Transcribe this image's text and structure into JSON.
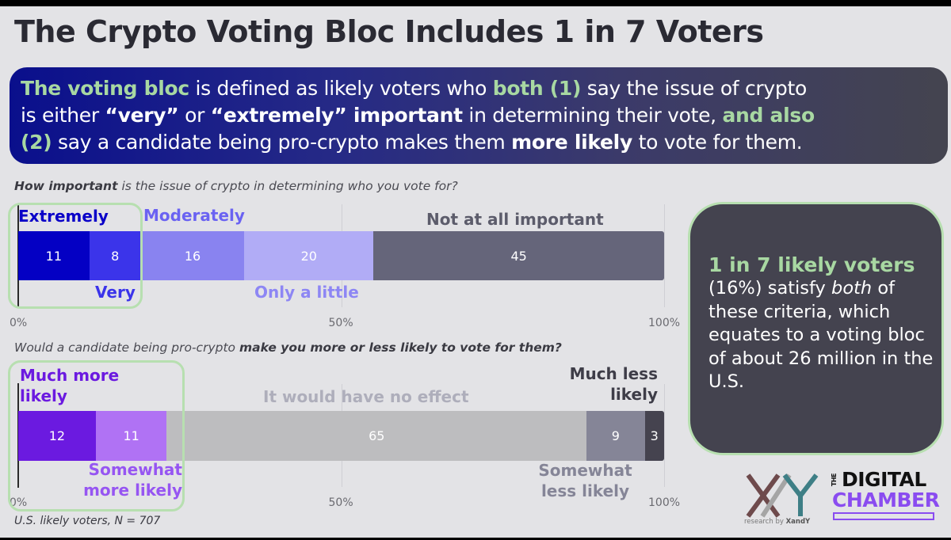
{
  "title": "The Crypto Voting Bloc Includes 1 in 7 Voters",
  "banner": {
    "line1": [
      {
        "t": "The voting bloc",
        "s": "g"
      },
      {
        "t": " is defined as likely voters who ",
        "s": ""
      },
      {
        "t": "both (1)",
        "s": "g"
      },
      {
        "t": " say the issue of crypto",
        "s": ""
      }
    ],
    "line2": [
      {
        "t": "is either ",
        "s": ""
      },
      {
        "t": "“very”",
        "s": "b"
      },
      {
        "t": " or ",
        "s": ""
      },
      {
        "t": "“extremely” important",
        "s": "b"
      },
      {
        "t": " in determining their vote, ",
        "s": ""
      },
      {
        "t": "and also",
        "s": "g"
      }
    ],
    "line3": [
      {
        "t": "(2)",
        "s": "g"
      },
      {
        "t": " say a candidate being pro-crypto makes them ",
        "s": ""
      },
      {
        "t": "more likely",
        "s": "b"
      },
      {
        "t": " to vote for them.",
        "s": ""
      }
    ]
  },
  "callout": {
    "headline": "1 in 7 likely voters",
    "body_pre": "(16%) satisfy ",
    "body_em": "both",
    "body_post": " of these criteria, which equates to a voting bloc of about 26 million in the U.S."
  },
  "footnote": "U.S. likely voters, N = 707",
  "logos": {
    "xandy_sub_pre": "research by ",
    "xandy_sub_brand": "XandY",
    "dc_the": "THE",
    "dc_line1": "DIGITAL",
    "dc_line2": "CHAMBER"
  },
  "chart_data": [
    {
      "type": "bar",
      "orientation": "horizontal-stacked",
      "question_bold": "How important",
      "question_rest": " is the issue of crypto in determining who you vote for?",
      "title": "How important is the issue of crypto in determining who you vote for?",
      "xlim": [
        0,
        100
      ],
      "xticks": [
        "0%",
        "50%",
        "100%"
      ],
      "grid": true,
      "categories": [
        "Extremely",
        "Very",
        "Moderately",
        "Only a little",
        "Not at all important"
      ],
      "values": [
        11,
        8,
        16,
        20,
        45
      ],
      "colors": [
        "#0400c4",
        "#3b34ea",
        "#8983f0",
        "#b1acf6",
        "#65657a"
      ],
      "label_colors": [
        "#0a00c8",
        "#3b34ea",
        "#6a62f2",
        "#8d86f4",
        "#5c5c6b"
      ],
      "highlighted": [
        "Extremely",
        "Very"
      ]
    },
    {
      "type": "bar",
      "orientation": "horizontal-stacked",
      "question_pre": "Would a candidate being pro-crypto ",
      "question_bold": "make you more or less likely to vote for them?",
      "title": "Would a candidate being pro-crypto make you more or less likely to vote for them?",
      "xlim": [
        0,
        100
      ],
      "xticks": [
        "0%",
        "50%",
        "100%"
      ],
      "grid": true,
      "categories": [
        "Much more likely",
        "Somewhat more likely",
        "It would have no effect",
        "Somewhat less likely",
        "Much less likely"
      ],
      "values": [
        12,
        11,
        65,
        9,
        3
      ],
      "colors": [
        "#6b1ae0",
        "#b072f4",
        "#bdbdbf",
        "#858597",
        "#45434f"
      ],
      "label_colors": [
        "#6b1ae0",
        "#9655f2",
        "#aeaebb",
        "#858597",
        "#3e3d48"
      ],
      "highlighted": [
        "Much more likely",
        "Somewhat more likely"
      ]
    }
  ]
}
